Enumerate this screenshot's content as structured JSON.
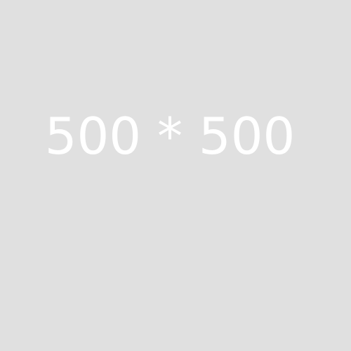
{
  "placeholder": {
    "label": "500 * 500",
    "background_color": "#e0e0e0",
    "text_color": "#ffffff"
  }
}
